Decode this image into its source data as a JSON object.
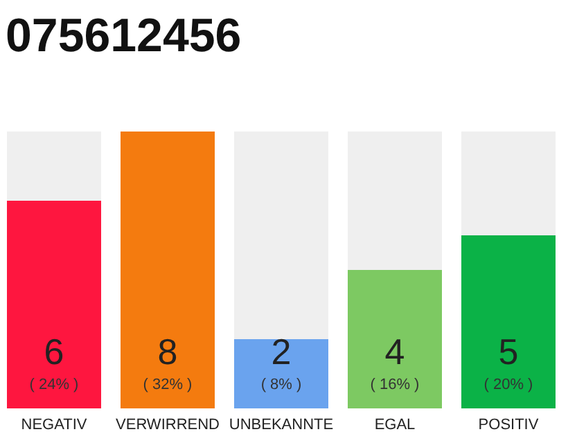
{
  "chart_data": {
    "type": "bar",
    "title": "075612456",
    "categories": [
      "NEGATIV",
      "VERWIRREND",
      "UNBEKANNTE",
      "EGAL",
      "POSITIV"
    ],
    "values": [
      6,
      8,
      2,
      4,
      5
    ],
    "colors": [
      "#fe163f",
      "#f47b0f",
      "#6aa3ee",
      "#7dc962",
      "#0bb247"
    ],
    "ylim": [
      0,
      8
    ],
    "tick_labels": "x",
    "data_labels": true,
    "annotations": [
      "( 24% )",
      "( 32% )",
      "( 8% )",
      "( 16% )",
      "( 20% )"
    ]
  }
}
